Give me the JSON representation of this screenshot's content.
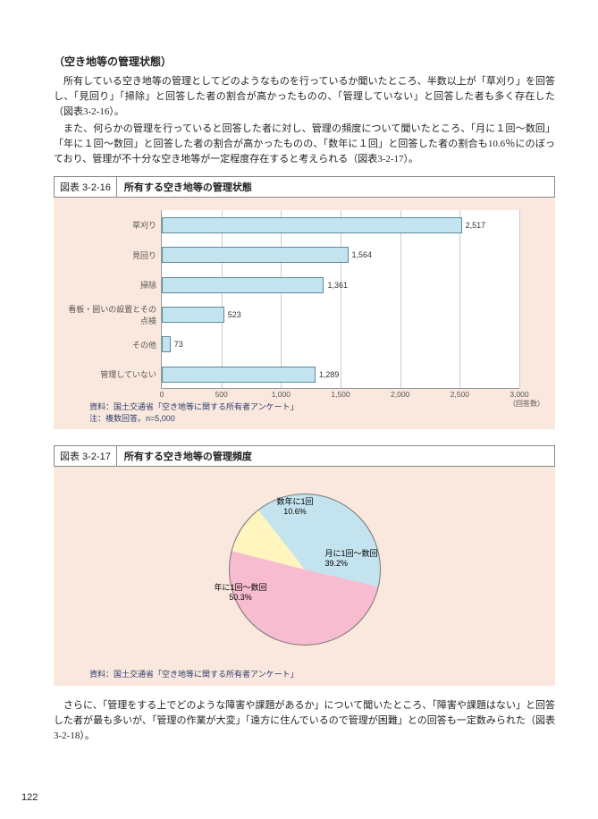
{
  "page_number": "122",
  "section_title": "（空き地等の管理状態）",
  "paragraphs": [
    "所有している空き地等の管理としてどのようなものを行っているか聞いたところ、半数以上が「草刈り」を回答し、「見回り」「掃除」と回答した者の割合が高かったものの、「管理していない」と回答した者も多く存在した（図表3-2-16）。",
    "また、何らかの管理を行っていると回答した者に対し、管理の頻度について聞いたところ、「月に１回～数回」「年に１回～数回」と回答した者の割合が高かったものの、「数年に１回」と回答した者の割合も10.6％にのぼっており、管理が不十分な空き地等が一定程度存在すると考えられる（図表3-2-17）。"
  ],
  "fig1": {
    "num": "図表 3-2-16",
    "title": "所有する空き地等の管理状態",
    "type": "bar",
    "xmax": 3000,
    "xtick_step": 500,
    "xticks": [
      "0",
      "500",
      "1,000",
      "1,500",
      "2,000",
      "2,500",
      "3,000"
    ],
    "xunit": "（回答数）",
    "bar_color": "#c3e4ee",
    "bar_border": "#5b8aa0",
    "bg": "#fae8de",
    "rows": [
      {
        "label": "草刈り",
        "value": 2517,
        "disp": "2,517"
      },
      {
        "label": "見回り",
        "value": 1564,
        "disp": "1,564"
      },
      {
        "label": "掃除",
        "value": 1361,
        "disp": "1,361"
      },
      {
        "label": "看板・囲いの設置とその点検",
        "value": 523,
        "disp": "523"
      },
      {
        "label": "その他",
        "value": 73,
        "disp": "73"
      },
      {
        "label": "管理していない",
        "value": 1289,
        "disp": "1,289"
      }
    ],
    "source_lines": [
      "資料：国土交通省「空き地等に関する所有者アンケート」",
      "注：複数回答。n=5,000"
    ]
  },
  "fig2": {
    "num": "図表 3-2-17",
    "title": "所有する空き地等の管理頻度",
    "type": "pie",
    "bg": "#fae8de",
    "slices": [
      {
        "label": "月に1回～数回",
        "pct": "39.2%",
        "value": 39.2,
        "color": "#c3e4ee"
      },
      {
        "label": "年に1回～数回",
        "pct": "50.3%",
        "value": 50.3,
        "color": "#f7bcd0"
      },
      {
        "label": "数年に1回",
        "pct": "10.6%",
        "value": 10.6,
        "color": "#fff6bf"
      }
    ],
    "source": "資料：国土交通省「空き地等に関する所有者アンケート」"
  },
  "closing_para": "さらに、「管理をする上でどのような障害や課題があるか」について聞いたところ、「障害や課題はない」と回答した者が最も多いが、「管理の作業が大変」「遠方に住んでいるので管理が困難」との回答も一定数みられた（図表3-2-18）。"
}
